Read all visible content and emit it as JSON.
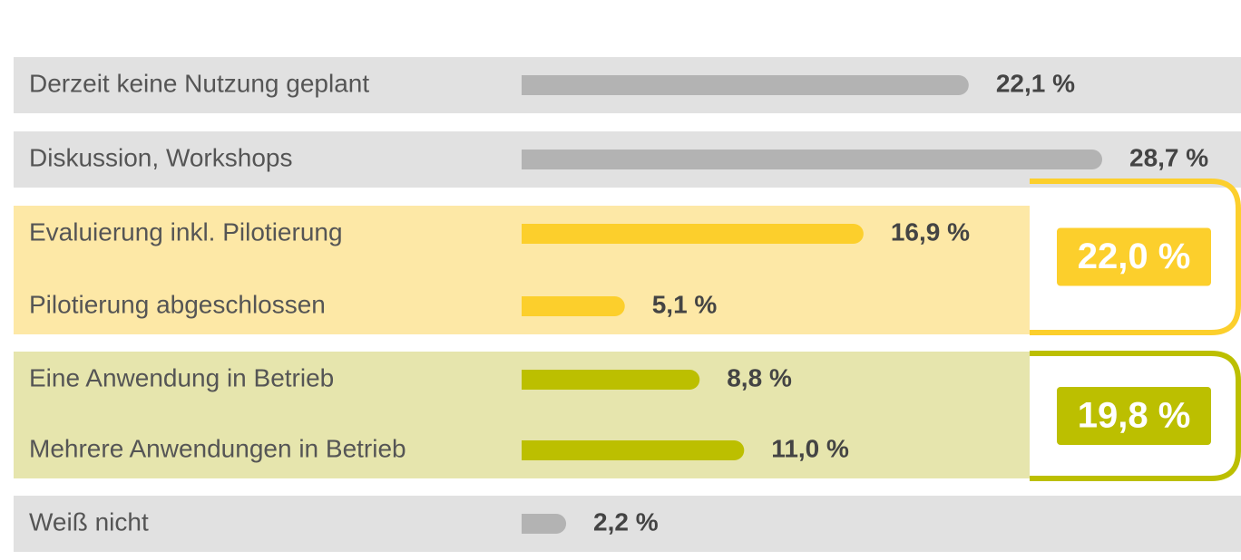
{
  "chart_data": {
    "type": "bar",
    "orientation": "horizontal",
    "categories": [
      "Derzeit keine Nutzung geplant",
      "Diskussion, Workshops",
      "Evaluierung inkl. Pilotierung",
      "Pilotierung abgeschlossen",
      "Eine Anwendung in Betrieb",
      "Mehrere Anwendungen in Betrieb",
      "Weiß nicht"
    ],
    "values": [
      22.1,
      28.7,
      16.9,
      5.1,
      8.8,
      11.0,
      2.2
    ],
    "value_labels": [
      "22,1 %",
      "28,7 %",
      "16,9 %",
      "5,1 %",
      "8,8 %",
      "11,0 %",
      "2,2 %"
    ],
    "colors": [
      "#b3b3b3",
      "#b3b3b3",
      "#fccf2c",
      "#fccf2c",
      "#bcbf00",
      "#bcbf00",
      "#b3b3b3"
    ],
    "annotations": [
      "22,0 %",
      "19,8 %"
    ],
    "annotation_colors": [
      "#fccf2c",
      "#bcbf00"
    ]
  }
}
